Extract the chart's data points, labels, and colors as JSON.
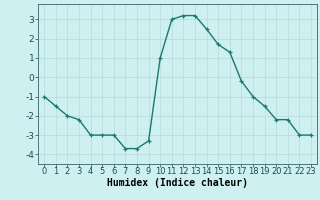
{
  "x": [
    0,
    1,
    2,
    3,
    4,
    5,
    6,
    7,
    8,
    9,
    10,
    11,
    12,
    13,
    14,
    15,
    16,
    17,
    18,
    19,
    20,
    21,
    22,
    23
  ],
  "y": [
    -1.0,
    -1.5,
    -2.0,
    -2.2,
    -3.0,
    -3.0,
    -3.0,
    -3.7,
    -3.7,
    -3.3,
    1.0,
    3.0,
    3.2,
    3.2,
    2.5,
    1.7,
    1.3,
    -0.2,
    -1.0,
    -1.5,
    -2.2,
    -2.2,
    -3.0,
    -3.0
  ],
  "xlim": [
    -0.5,
    23.5
  ],
  "ylim": [
    -4.5,
    3.8
  ],
  "yticks": [
    -4,
    -3,
    -2,
    -1,
    0,
    1,
    2,
    3
  ],
  "xticks": [
    0,
    1,
    2,
    3,
    4,
    5,
    6,
    7,
    8,
    9,
    10,
    11,
    12,
    13,
    14,
    15,
    16,
    17,
    18,
    19,
    20,
    21,
    22,
    23
  ],
  "xlabel": "Humidex (Indice chaleur)",
  "line_color": "#1a7a6e",
  "marker": "+",
  "marker_size": 3.5,
  "bg_color": "#cff0f0",
  "grid_color": "#b8dada",
  "axis_color": "#336666",
  "tick_label_color": "#1a5050",
  "xlabel_color": "#000000",
  "xlabel_fontsize": 7,
  "tick_fontsize": 6,
  "linewidth": 1.0
}
